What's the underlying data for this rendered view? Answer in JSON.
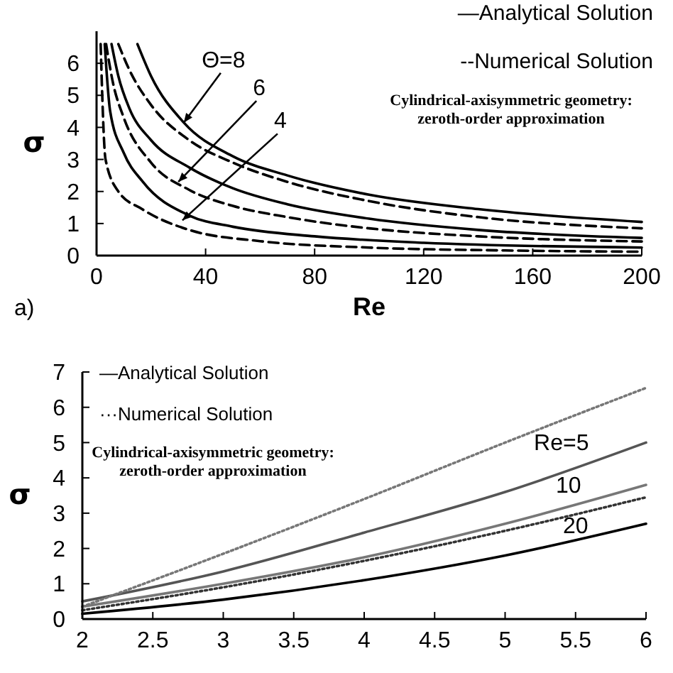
{
  "chart_data": [
    {
      "type": "line",
      "xlabel": "Re",
      "ylabel": "σ",
      "xlim": [
        0,
        200
      ],
      "xticks": [
        0,
        40,
        80,
        120,
        160,
        200
      ],
      "ylim": [
        0,
        7
      ],
      "yticks": [
        0,
        1,
        2,
        3,
        4,
        5,
        6
      ],
      "annotations": [
        "—Analytical Solution",
        "--Numerical Solution",
        "Cylindrical-axisymmetric geometry:\nzeroth-order approximation",
        "a)",
        {
          "text": "Θ=8",
          "x": 32,
          "y": 4.15
        },
        {
          "text": "6",
          "x": 30,
          "y": 2.3
        },
        {
          "text": "4",
          "x": 31.5,
          "y": 1.1
        }
      ],
      "series": [
        {
          "color": "#000000",
          "line_style": "solid",
          "x": [
            15,
            20,
            32,
            50,
            70,
            100,
            140,
            200
          ],
          "values": [
            6.6,
            5.6,
            4.15,
            3.1,
            2.5,
            1.9,
            1.45,
            1.05
          ]
        },
        {
          "color": "#000000",
          "line_style": "dashed",
          "x": [
            8,
            12,
            20,
            34,
            50,
            70,
            100,
            140,
            200
          ],
          "values": [
            6.6,
            5.8,
            4.7,
            3.6,
            2.9,
            2.3,
            1.7,
            1.2,
            0.85
          ]
        },
        {
          "color": "#000000",
          "line_style": "solid",
          "x": [
            5.5,
            8,
            12,
            20,
            34,
            50,
            70,
            100,
            140,
            200
          ],
          "values": [
            6.6,
            5.6,
            4.6,
            3.6,
            2.75,
            2.1,
            1.6,
            1.15,
            0.8,
            0.55
          ]
        },
        {
          "color": "#000000",
          "line_style": "dashed",
          "x": [
            3.5,
            6,
            10,
            20,
            34,
            50,
            70,
            100,
            140,
            200
          ],
          "values": [
            6.6,
            5.4,
            4.3,
            2.9,
            2.05,
            1.55,
            1.2,
            0.85,
            0.6,
            0.44
          ]
        },
        {
          "color": "#000000",
          "line_style": "solid",
          "x": [
            3,
            5,
            10,
            17,
            34,
            50,
            80,
            120,
            200
          ],
          "values": [
            6.6,
            4.5,
            3.2,
            2.3,
            1.25,
            0.9,
            0.6,
            0.4,
            0.25
          ]
        },
        {
          "color": "#000000",
          "line_style": "dashed",
          "x": [
            1.5,
            3.3,
            8,
            16.7,
            34,
            60,
            100,
            150,
            200
          ],
          "values": [
            6.6,
            3,
            2,
            1.45,
            0.8,
            0.45,
            0.25,
            0.16,
            0.12
          ]
        }
      ]
    },
    {
      "type": "line",
      "ylabel": "σ",
      "xlim": [
        2,
        6
      ],
      "xticks": [
        2,
        2.5,
        3,
        3.5,
        4,
        4.5,
        5,
        5.5,
        6
      ],
      "ylim": [
        0,
        7
      ],
      "yticks": [
        0,
        1,
        2,
        3,
        4,
        5,
        6,
        7
      ],
      "annotations": [
        "—Analytical Solution",
        "···Numerical Solution",
        "Cylindrical-axisymmetric geometry:\nzeroth-order approximation",
        {
          "text": "Re=5",
          "x": 5.5,
          "y": 4.3
        },
        {
          "text": "10",
          "x": 5.5,
          "y": 3.25
        },
        {
          "text": "20",
          "x": 5.5,
          "y": 2.2
        }
      ],
      "series": [
        {
          "color": "#555555",
          "line_style": "solid",
          "x": [
            2,
            3,
            4,
            5,
            6
          ],
          "values": [
            0.5,
            1.35,
            2.45,
            3.6,
            5.0
          ]
        },
        {
          "color": "#777777",
          "line_style": "dotted",
          "x": [
            2,
            3,
            4,
            5,
            6
          ],
          "values": [
            0.35,
            1.85,
            3.4,
            5.0,
            6.55
          ]
        },
        {
          "color": "#777777",
          "line_style": "solid",
          "x": [
            2,
            3,
            4,
            5,
            6
          ],
          "values": [
            0.35,
            1.0,
            1.75,
            2.7,
            3.8
          ]
        },
        {
          "color": "#333333",
          "line_style": "dotted",
          "x": [
            2,
            3,
            4,
            5,
            6
          ],
          "values": [
            0.25,
            0.9,
            1.65,
            2.5,
            3.45
          ]
        },
        {
          "color": "#000000",
          "line_style": "solid",
          "x": [
            2,
            3,
            4,
            5,
            6
          ],
          "values": [
            0.15,
            0.55,
            1.1,
            1.8,
            2.7
          ]
        }
      ]
    }
  ]
}
